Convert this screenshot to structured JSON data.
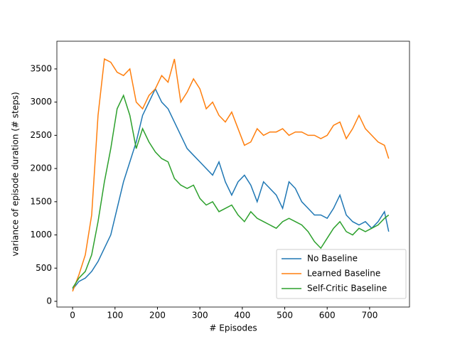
{
  "chart_data": {
    "type": "line",
    "x_label": "# Episodes",
    "y_label": "variance of episode duration (# steps)",
    "x": [
      0,
      15,
      30,
      45,
      60,
      75,
      90,
      105,
      120,
      135,
      150,
      165,
      180,
      195,
      210,
      225,
      240,
      255,
      270,
      285,
      300,
      315,
      330,
      345,
      360,
      375,
      390,
      405,
      420,
      435,
      450,
      465,
      480,
      495,
      510,
      525,
      540,
      555,
      570,
      585,
      600,
      615,
      630,
      645,
      660,
      675,
      690,
      705,
      720,
      735,
      745
    ],
    "series": [
      {
        "name": "No Baseline",
        "color": "#1f77b4",
        "values": [
          180,
          300,
          350,
          450,
          600,
          800,
          1000,
          1400,
          1800,
          2100,
          2400,
          2800,
          3000,
          3200,
          3000,
          2900,
          2700,
          2500,
          2300,
          2200,
          2100,
          2000,
          1900,
          2100,
          1800,
          1600,
          1800,
          1900,
          1750,
          1500,
          1800,
          1700,
          1600,
          1400,
          1800,
          1700,
          1500,
          1400,
          1300,
          1300,
          1250,
          1400,
          1600,
          1300,
          1200,
          1150,
          1200,
          1100,
          1200,
          1350,
          1050
        ]
      },
      {
        "name": "Learned Baseline",
        "color": "#ff7f0e",
        "values": [
          150,
          400,
          700,
          1300,
          2800,
          3650,
          3600,
          3450,
          3400,
          3500,
          3000,
          2900,
          3100,
          3200,
          3400,
          3300,
          3650,
          3000,
          3150,
          3350,
          3200,
          2900,
          3000,
          2800,
          2700,
          2850,
          2600,
          2350,
          2400,
          2600,
          2500,
          2550,
          2550,
          2600,
          2500,
          2550,
          2550,
          2500,
          2500,
          2450,
          2500,
          2650,
          2700,
          2450,
          2600,
          2800,
          2600,
          2500,
          2400,
          2350,
          2150
        ]
      },
      {
        "name": "Self-Critic Baseline",
        "color": "#2ca02c",
        "values": [
          200,
          350,
          450,
          700,
          1200,
          1800,
          2300,
          2900,
          3100,
          2800,
          2300,
          2600,
          2400,
          2250,
          2150,
          2100,
          1850,
          1750,
          1700,
          1750,
          1550,
          1450,
          1500,
          1350,
          1400,
          1450,
          1300,
          1200,
          1350,
          1250,
          1200,
          1150,
          1100,
          1200,
          1250,
          1200,
          1150,
          1050,
          900,
          800,
          950,
          1100,
          1200,
          1050,
          1000,
          1100,
          1050,
          1100,
          1150,
          1250,
          1300
        ]
      }
    ],
    "xlim": [
      -37,
      794
    ],
    "ylim": [
      -86,
      3917
    ],
    "xticks": [
      0,
      100,
      200,
      300,
      400,
      500,
      600,
      700
    ],
    "yticks": [
      0,
      500,
      1000,
      1500,
      2000,
      2500,
      3000,
      3500
    ],
    "legend": "lower right"
  }
}
